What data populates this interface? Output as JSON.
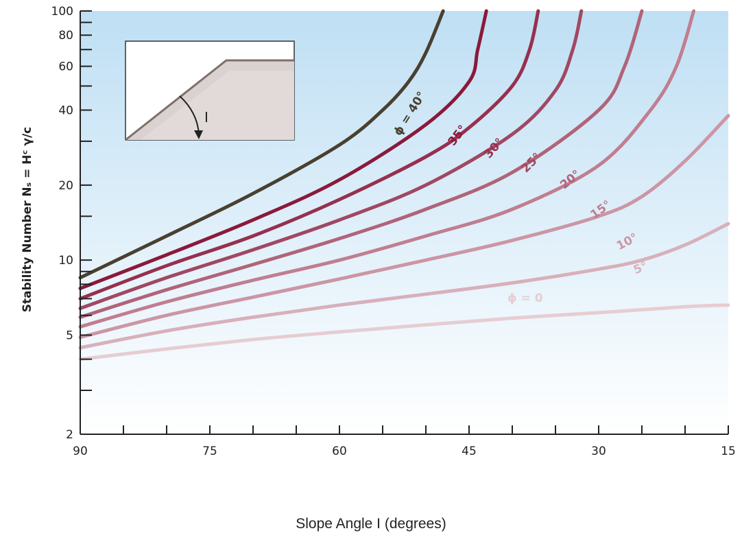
{
  "chart_data": {
    "type": "line",
    "title": "",
    "xlabel": "Slope Angle I (degrees)",
    "ylabel": "Stability Number Nₛ = Hᶜ γ/c",
    "x_axis": {
      "reversed": true,
      "xlim": [
        90,
        15
      ],
      "ticks": [
        90,
        75,
        60,
        45,
        30,
        15
      ]
    },
    "y_axis": {
      "scale": "log",
      "ylim": [
        2,
        100
      ],
      "ticks": [
        2,
        5,
        10,
        20,
        40,
        60,
        80,
        100
      ]
    },
    "legend": "none (curves labeled inline)",
    "inset": {
      "description_label": "I"
    },
    "series": [
      {
        "name": "ϕ = 40°",
        "color": "#4a4030",
        "points": [
          [
            90,
            8.5
          ],
          [
            80,
            12.5
          ],
          [
            70,
            18.5
          ],
          [
            60,
            29
          ],
          [
            55,
            40
          ],
          [
            52,
            52
          ],
          [
            50,
            68
          ],
          [
            48,
            100
          ]
        ]
      },
      {
        "name": "35°",
        "color": "#8a1a3a",
        "points": [
          [
            90,
            7.7
          ],
          [
            80,
            10.5
          ],
          [
            70,
            14.5
          ],
          [
            60,
            21
          ],
          [
            50,
            35
          ],
          [
            45,
            52
          ],
          [
            44,
            70
          ],
          [
            43,
            100
          ]
        ]
      },
      {
        "name": "30°",
        "color": "#96304e",
        "points": [
          [
            90,
            7.0
          ],
          [
            80,
            9.5
          ],
          [
            70,
            12.5
          ],
          [
            60,
            17.5
          ],
          [
            50,
            26
          ],
          [
            45,
            34
          ],
          [
            40,
            50
          ],
          [
            38,
            70
          ],
          [
            37,
            100
          ]
        ]
      },
      {
        "name": "25°",
        "color": "#a04862",
        "points": [
          [
            90,
            6.4
          ],
          [
            80,
            8.5
          ],
          [
            70,
            11
          ],
          [
            60,
            14.5
          ],
          [
            50,
            20
          ],
          [
            40,
            32
          ],
          [
            35,
            48
          ],
          [
            33,
            70
          ],
          [
            32,
            100
          ]
        ]
      },
      {
        "name": "20°",
        "color": "#b06478",
        "points": [
          [
            90,
            5.9
          ],
          [
            80,
            7.6
          ],
          [
            70,
            9.6
          ],
          [
            60,
            12.2
          ],
          [
            50,
            16
          ],
          [
            40,
            22.5
          ],
          [
            30,
            40
          ],
          [
            27,
            60
          ],
          [
            25,
            100
          ]
        ]
      },
      {
        "name": "15°",
        "color": "#c07e90",
        "points": [
          [
            90,
            5.4
          ],
          [
            80,
            6.8
          ],
          [
            70,
            8.3
          ],
          [
            60,
            10
          ],
          [
            50,
            12.5
          ],
          [
            40,
            16
          ],
          [
            30,
            24
          ],
          [
            24,
            40
          ],
          [
            21,
            60
          ],
          [
            19,
            100
          ]
        ]
      },
      {
        "name": "10°",
        "color": "#cc96a4",
        "points": [
          [
            90,
            4.9
          ],
          [
            80,
            6.0
          ],
          [
            70,
            7.1
          ],
          [
            60,
            8.4
          ],
          [
            50,
            10
          ],
          [
            40,
            12
          ],
          [
            30,
            15
          ],
          [
            25,
            18
          ],
          [
            20,
            25
          ],
          [
            15,
            38
          ]
        ]
      },
      {
        "name": "5°",
        "color": "#d8b0ba",
        "points": [
          [
            90,
            4.45
          ],
          [
            80,
            5.2
          ],
          [
            70,
            5.9
          ],
          [
            60,
            6.6
          ],
          [
            50,
            7.3
          ],
          [
            40,
            8.1
          ],
          [
            30,
            9.2
          ],
          [
            25,
            10
          ],
          [
            20,
            11.5
          ],
          [
            15,
            14
          ]
        ]
      },
      {
        "name": "ϕ = 0",
        "color": "#e6cdd2",
        "points": [
          [
            90,
            4.0
          ],
          [
            80,
            4.4
          ],
          [
            70,
            4.8
          ],
          [
            60,
            5.15
          ],
          [
            50,
            5.5
          ],
          [
            40,
            5.85
          ],
          [
            30,
            6.15
          ],
          [
            20,
            6.5
          ],
          [
            15,
            6.6
          ]
        ]
      }
    ]
  }
}
